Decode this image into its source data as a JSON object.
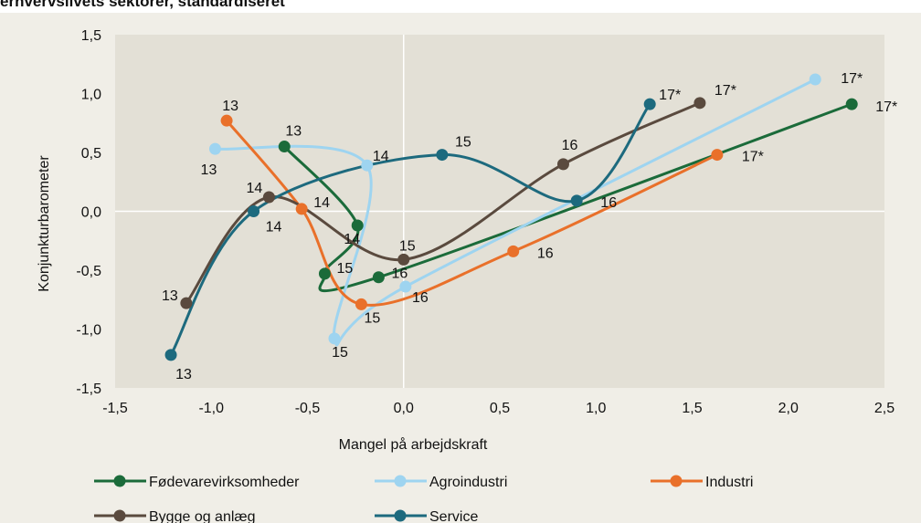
{
  "chart_data": {
    "type": "line",
    "title": "erhvervslivets sektorer, standardiseret",
    "x_label": "Mangel på arbejdskraft",
    "y_label": "Konjunkturbarometer",
    "xlim": [
      -1.5,
      2.5
    ],
    "ylim": [
      -1.5,
      1.5
    ],
    "xticks": [
      {
        "value": -1.5,
        "label": "-1,5"
      },
      {
        "value": -1.0,
        "label": "-1,0"
      },
      {
        "value": -0.5,
        "label": "-0,5"
      },
      {
        "value": 0,
        "label": "0,0"
      },
      {
        "value": 0.5,
        "label": "0,5"
      },
      {
        "value": 1.0,
        "label": "1,0"
      },
      {
        "value": 1.5,
        "label": "1,5"
      },
      {
        "value": 2.0,
        "label": "2,0"
      },
      {
        "value": 2.5,
        "label": "2,5"
      }
    ],
    "yticks": [
      {
        "value": -1.5,
        "label": "-1,5"
      },
      {
        "value": -1.0,
        "label": "-1,0"
      },
      {
        "value": -0.5,
        "label": "-0,5"
      },
      {
        "value": 0,
        "label": "0,0"
      },
      {
        "value": 0.5,
        "label": "0,5"
      },
      {
        "value": 1.0,
        "label": "1,0"
      },
      {
        "value": 1.5,
        "label": "1,5"
      }
    ],
    "smooth": true,
    "series": [
      {
        "name": "Fødevarevirksomheder",
        "color": "#1b6b3a",
        "x": [
          -0.62,
          -0.24,
          -0.41,
          -0.13,
          2.33
        ],
        "values": [
          0.55,
          -0.12,
          -0.53,
          -0.56,
          0.91
        ],
        "point_labels": [
          "13",
          "14",
          "15",
          "16",
          "17*"
        ]
      },
      {
        "name": "Agroindustri",
        "color": "#9ed4f0",
        "x": [
          -0.98,
          -0.19,
          -0.36,
          0.01,
          2.14
        ],
        "values": [
          0.53,
          0.39,
          -1.08,
          -0.64,
          1.12
        ],
        "point_labels": [
          "13",
          "14",
          "15",
          "16",
          "17*"
        ]
      },
      {
        "name": "Industri",
        "color": "#e9702a",
        "x": [
          -0.92,
          -0.53,
          -0.22,
          0.57,
          1.63
        ],
        "values": [
          0.77,
          0.02,
          -0.79,
          -0.34,
          0.48
        ],
        "point_labels": [
          "13",
          "14",
          "15",
          "16",
          "17*"
        ]
      },
      {
        "name": "Bygge og anlæg",
        "color": "#5a4a3e",
        "x": [
          -1.13,
          -0.7,
          0.0,
          0.83,
          1.54
        ],
        "values": [
          -0.78,
          0.12,
          -0.41,
          0.4,
          0.92
        ],
        "point_labels": [
          "13",
          "14",
          "15",
          "16",
          "17*"
        ]
      },
      {
        "name": "Service",
        "color": "#1d6a7e",
        "x": [
          -1.21,
          -0.78,
          0.2,
          0.9,
          1.28
        ],
        "values": [
          -1.22,
          0.0,
          0.48,
          0.09,
          0.91
        ],
        "point_labels": [
          "13",
          "14",
          "15",
          "16",
          "17*"
        ]
      }
    ]
  }
}
